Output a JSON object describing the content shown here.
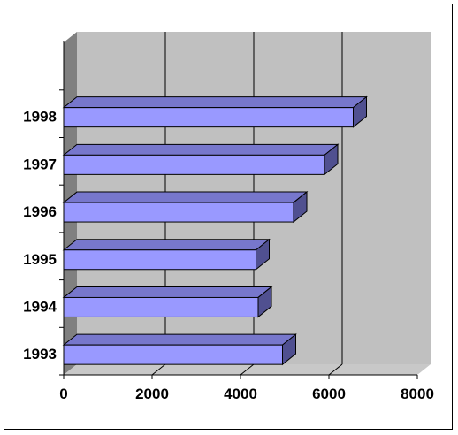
{
  "chart_data": {
    "type": "bar",
    "orientation": "horizontal",
    "style": "3d",
    "categories": [
      "1993",
      "1994",
      "1995",
      "1996",
      "1997",
      "1998"
    ],
    "series": [
      {
        "values": [
          4950,
          4400,
          4350,
          5200,
          5900,
          6550
        ]
      }
    ],
    "xlim": [
      0,
      8000
    ],
    "x_ticks": [
      "0",
      "2000",
      "4000",
      "6000",
      "8000"
    ],
    "title": "",
    "xlabel": "",
    "ylabel": "",
    "grid": "vertical",
    "legend": "none",
    "colors": {
      "bar_front": "#9999FF",
      "bar_top": "#7777CC",
      "bar_side": "#505090",
      "back_wall": "#C0C0C0",
      "side_wall": "#808080",
      "floor": "#C8C8C8",
      "gridline": "#000000"
    }
  }
}
